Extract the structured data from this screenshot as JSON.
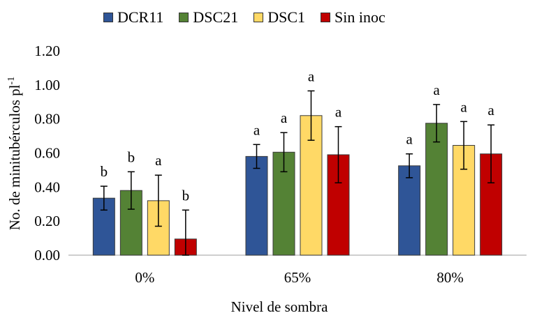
{
  "chart_data": {
    "type": "bar",
    "title": "",
    "xlabel": "Nivel de sombra",
    "ylabel_main": "No. de minitubérculos pl",
    "ylabel_sup": "-1",
    "ylim": [
      0,
      1.2
    ],
    "yticks": [
      "0.00",
      "0.20",
      "0.40",
      "0.60",
      "0.80",
      "1.00",
      "1.20"
    ],
    "ytick_values": [
      0,
      0.2,
      0.4,
      0.6,
      0.8,
      1.0,
      1.2
    ],
    "grid": false,
    "legend_position": "top",
    "categories": [
      "0%",
      "65%",
      "80%"
    ],
    "series": [
      {
        "name": "DCR11",
        "color": "#2f5597",
        "values": [
          0.335,
          0.58,
          0.525
        ],
        "errors": [
          0.07,
          0.07,
          0.07
        ],
        "labels": [
          "b",
          "a",
          "a"
        ]
      },
      {
        "name": "DSC21",
        "color": "#548235",
        "values": [
          0.38,
          0.605,
          0.775
        ],
        "errors": [
          0.11,
          0.115,
          0.11
        ],
        "labels": [
          "b",
          "a",
          "a"
        ]
      },
      {
        "name": "DSC1",
        "color": "#ffd966",
        "values": [
          0.32,
          0.82,
          0.645
        ],
        "errors": [
          0.15,
          0.145,
          0.14
        ],
        "labels": [
          "a",
          "a",
          "a"
        ]
      },
      {
        "name": "Sin inoc",
        "color": "#c00000",
        "values": [
          0.095,
          0.59,
          0.595
        ],
        "errors": [
          0.17,
          0.165,
          0.17
        ],
        "labels": [
          "b",
          "a",
          "a"
        ]
      }
    ]
  }
}
